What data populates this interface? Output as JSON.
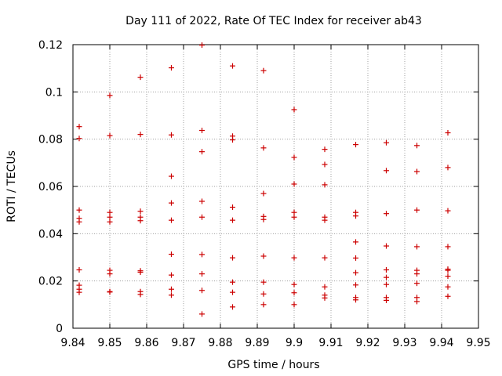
{
  "chart_data": {
    "type": "scatter",
    "title": "Day 111 of 2022, Rate Of TEC Index for receiver ab43",
    "xlabel": "GPS time / hours",
    "ylabel": "ROTI / TECUs",
    "xlim": [
      9.84,
      9.95
    ],
    "ylim": [
      0,
      0.12
    ],
    "x_ticks": [
      9.84,
      9.85,
      9.86,
      9.87,
      9.88,
      9.89,
      9.9,
      9.91,
      9.92,
      9.93,
      9.94,
      9.95
    ],
    "x_tick_labels": [
      "9.84",
      "9.85",
      "9.86",
      "9.87",
      "9.88",
      "9.89",
      "9.9",
      "9.91",
      "9.92",
      "9.93",
      "9.94",
      "9.95"
    ],
    "y_ticks": [
      0,
      0.02,
      0.04,
      0.06,
      0.08,
      0.1,
      0.12
    ],
    "y_tick_labels": [
      "0",
      "0.02",
      "0.04",
      "0.06",
      "0.08",
      "0.1",
      "0.12"
    ],
    "grid": true,
    "marker": "+",
    "marker_color": "#cc0000",
    "series": [
      {
        "name": "ROTI",
        "points": [
          [
            9.8417,
            0.0853
          ],
          [
            9.8417,
            0.0803
          ],
          [
            9.8417,
            0.05
          ],
          [
            9.8417,
            0.0465
          ],
          [
            9.8417,
            0.045
          ],
          [
            9.8417,
            0.0247
          ],
          [
            9.8417,
            0.0182
          ],
          [
            9.8417,
            0.0165
          ],
          [
            9.8417,
            0.0152
          ],
          [
            9.85,
            0.0985
          ],
          [
            9.85,
            0.0815
          ],
          [
            9.85,
            0.049
          ],
          [
            9.85,
            0.047
          ],
          [
            9.85,
            0.045
          ],
          [
            9.85,
            0.0245
          ],
          [
            9.85,
            0.023
          ],
          [
            9.85,
            0.0155
          ],
          [
            9.85,
            0.0153
          ],
          [
            9.8583,
            0.1062
          ],
          [
            9.8583,
            0.082
          ],
          [
            9.8583,
            0.0495
          ],
          [
            9.8583,
            0.047
          ],
          [
            9.8583,
            0.0455
          ],
          [
            9.8583,
            0.0243
          ],
          [
            9.8583,
            0.0237
          ],
          [
            9.8583,
            0.0155
          ],
          [
            9.8583,
            0.0143
          ],
          [
            9.8667,
            0.1102
          ],
          [
            9.8667,
            0.0818
          ],
          [
            9.8667,
            0.0643
          ],
          [
            9.8667,
            0.053
          ],
          [
            9.8667,
            0.0457
          ],
          [
            9.8667,
            0.0313
          ],
          [
            9.8667,
            0.0225
          ],
          [
            9.8667,
            0.0165
          ],
          [
            9.8667,
            0.014
          ],
          [
            9.875,
            0.1198
          ],
          [
            9.875,
            0.0837
          ],
          [
            9.875,
            0.0747
          ],
          [
            9.875,
            0.0537
          ],
          [
            9.875,
            0.047
          ],
          [
            9.875,
            0.0312
          ],
          [
            9.875,
            0.023
          ],
          [
            9.875,
            0.016
          ],
          [
            9.875,
            0.006
          ],
          [
            9.8833,
            0.111
          ],
          [
            9.8833,
            0.0813
          ],
          [
            9.8833,
            0.0797
          ],
          [
            9.8833,
            0.0512
          ],
          [
            9.8833,
            0.0457
          ],
          [
            9.8833,
            0.0298
          ],
          [
            9.8833,
            0.0195
          ],
          [
            9.8833,
            0.0152
          ],
          [
            9.8833,
            0.009
          ],
          [
            9.8917,
            0.109
          ],
          [
            9.8917,
            0.0763
          ],
          [
            9.8917,
            0.057
          ],
          [
            9.8917,
            0.0473
          ],
          [
            9.8917,
            0.046
          ],
          [
            9.8917,
            0.0305
          ],
          [
            9.8917,
            0.0195
          ],
          [
            9.8917,
            0.0145
          ],
          [
            9.8917,
            0.01
          ],
          [
            9.9,
            0.0925
          ],
          [
            9.9,
            0.0723
          ],
          [
            9.9,
            0.061
          ],
          [
            9.9,
            0.049
          ],
          [
            9.9,
            0.047
          ],
          [
            9.9,
            0.0298
          ],
          [
            9.9,
            0.0185
          ],
          [
            9.9,
            0.015
          ],
          [
            9.9,
            0.01
          ],
          [
            9.9083,
            0.0757
          ],
          [
            9.9083,
            0.0693
          ],
          [
            9.9083,
            0.0607
          ],
          [
            9.9083,
            0.047
          ],
          [
            9.9083,
            0.0457
          ],
          [
            9.9083,
            0.0298
          ],
          [
            9.9083,
            0.0175
          ],
          [
            9.9083,
            0.014
          ],
          [
            9.9083,
            0.0128
          ],
          [
            9.9167,
            0.0777
          ],
          [
            9.9167,
            0.049
          ],
          [
            9.9167,
            0.0475
          ],
          [
            9.9167,
            0.0365
          ],
          [
            9.9167,
            0.0297
          ],
          [
            9.9167,
            0.0235
          ],
          [
            9.9167,
            0.0183
          ],
          [
            9.9167,
            0.013
          ],
          [
            9.9167,
            0.012
          ],
          [
            9.925,
            0.0785
          ],
          [
            9.925,
            0.0667
          ],
          [
            9.925,
            0.0485
          ],
          [
            9.925,
            0.0348
          ],
          [
            9.925,
            0.0247
          ],
          [
            9.925,
            0.0215
          ],
          [
            9.925,
            0.0185
          ],
          [
            9.925,
            0.013
          ],
          [
            9.925,
            0.0118
          ],
          [
            9.9333,
            0.0773
          ],
          [
            9.9333,
            0.0663
          ],
          [
            9.9333,
            0.05
          ],
          [
            9.9333,
            0.0345
          ],
          [
            9.9333,
            0.0245
          ],
          [
            9.9333,
            0.023
          ],
          [
            9.9333,
            0.019
          ],
          [
            9.9333,
            0.013
          ],
          [
            9.9333,
            0.0113
          ],
          [
            9.9417,
            0.0827
          ],
          [
            9.9417,
            0.068
          ],
          [
            9.9417,
            0.0497
          ],
          [
            9.9417,
            0.0345
          ],
          [
            9.9417,
            0.025
          ],
          [
            9.9417,
            0.0245
          ],
          [
            9.9417,
            0.022
          ],
          [
            9.9417,
            0.0175
          ],
          [
            9.9417,
            0.0135
          ]
        ]
      }
    ]
  }
}
